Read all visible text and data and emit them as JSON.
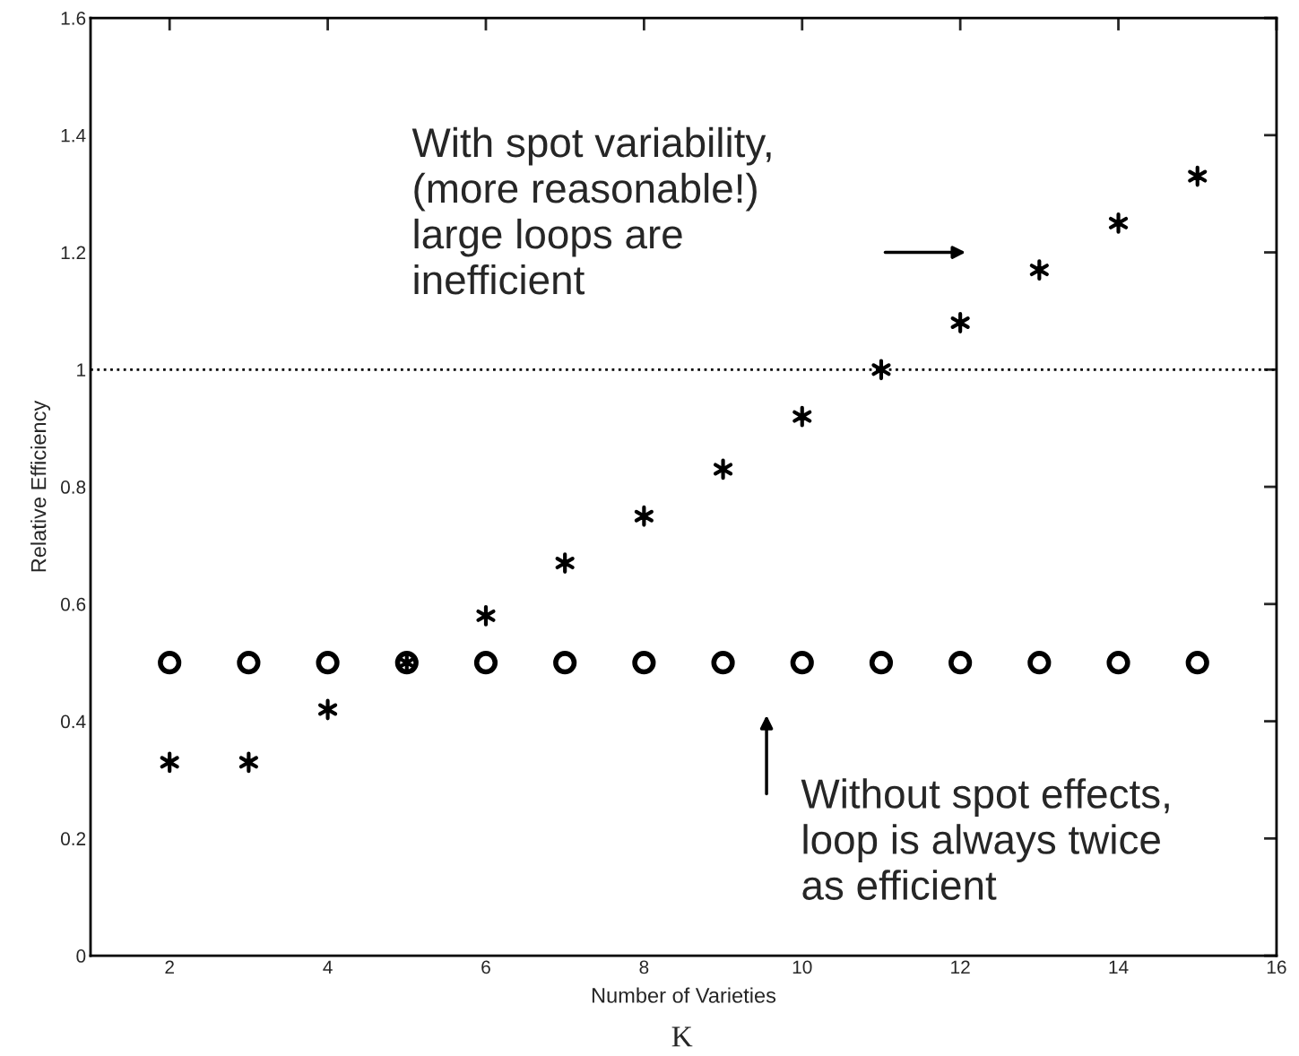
{
  "chart_data": {
    "type": "scatter",
    "xlabel": "Number of Varieties",
    "ylabel": "Relative Efficiency",
    "xlim": [
      1,
      16
    ],
    "xticks": [
      2,
      4,
      6,
      8,
      10,
      12,
      14,
      16
    ],
    "ylim": [
      0,
      1.6
    ],
    "yticks": [
      0,
      0.2,
      0.4,
      0.6,
      0.8,
      1,
      1.2,
      1.4,
      1.6
    ],
    "x": [
      2,
      3,
      4,
      5,
      6,
      7,
      8,
      9,
      10,
      11,
      12,
      13,
      14,
      15
    ],
    "series": [
      {
        "color": "#000000",
        "marker": "cross",
        "values": [
          0.33,
          0.33,
          0.42,
          0.5,
          0.58,
          0.67,
          0.75,
          0.83,
          0.92,
          1.0,
          1.08,
          1.17,
          1.25,
          1.33
        ]
      },
      {
        "color": "#000000",
        "marker": "circle",
        "values": [
          0.5,
          0.5,
          0.5,
          0.5,
          0.5,
          0.5,
          0.5,
          0.5,
          0.5,
          0.5,
          0.5,
          0.5,
          0.5,
          0.5
        ]
      }
    ],
    "ref_lines": [
      {
        "axis": "y",
        "value": 1,
        "color": "#000000",
        "line_style": "dotted"
      }
    ],
    "annotations": [
      "With spot variability,\n(more reasonable!)\nlarge loops are\ninefficient",
      "Without spot effects,\nloop is always twice\nas efficient",
      "K"
    ],
    "grid": false
  }
}
